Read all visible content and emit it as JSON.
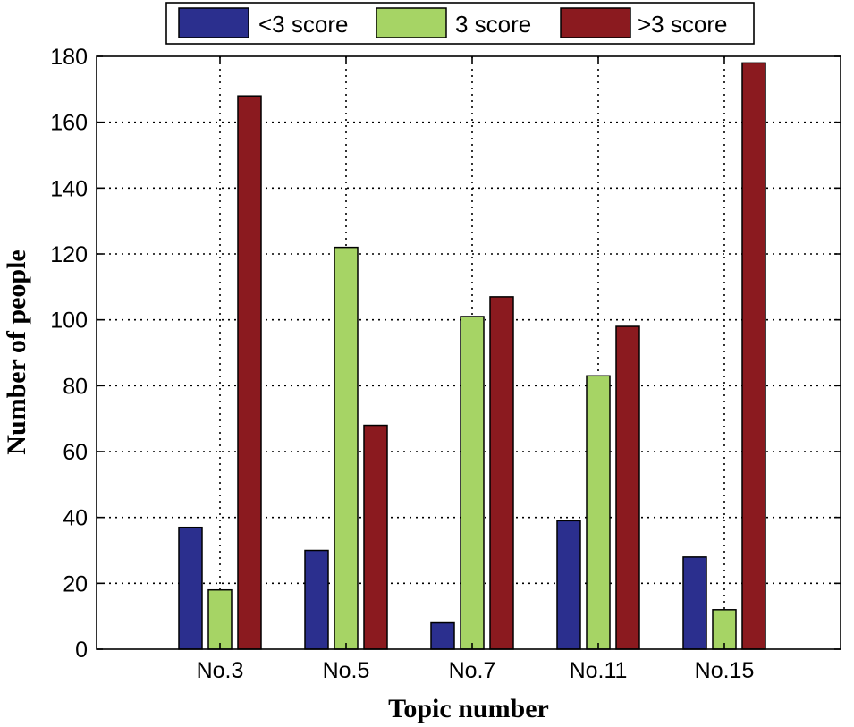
{
  "chart_data": {
    "type": "bar",
    "categories": [
      "No.3",
      "No.5",
      "No.7",
      "No.11",
      "No.15"
    ],
    "series": [
      {
        "name": "<3 score",
        "color": "#2b2f8e",
        "values": [
          37,
          30,
          8,
          39,
          28
        ]
      },
      {
        "name": "3 score",
        "color": "#a6d465",
        "values": [
          18,
          122,
          101,
          83,
          12
        ]
      },
      {
        "name": ">3 score",
        "color": "#8b1a1f",
        "values": [
          168,
          68,
          107,
          98,
          178
        ]
      }
    ],
    "title": "",
    "xlabel": "Topic number",
    "ylabel": "Number of people",
    "ylim": [
      0,
      180
    ],
    "yticks": [
      "0",
      "20",
      "40",
      "60",
      "80",
      "100",
      "120",
      "140",
      "160",
      "180"
    ],
    "grid": true,
    "legend_position": "top-center"
  }
}
